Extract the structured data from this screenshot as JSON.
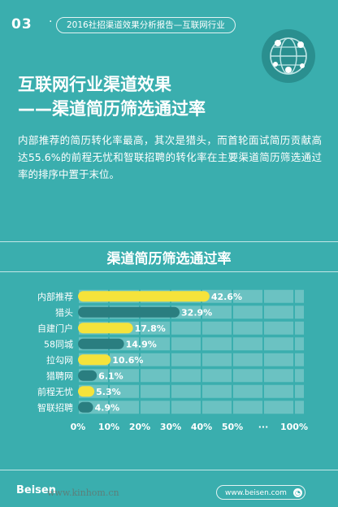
{
  "header": {
    "section_number": "03",
    "section_dot": "·",
    "section_title": "2016社招渠道效果分析报告—互联网行业"
  },
  "title": {
    "line1": "互联网行业渠道效果",
    "line2": "——渠道简历筛选通过率"
  },
  "body_text": "内部推荐的简历转化率最高，其次是猎头，而首轮面试简历贡献高达55.6%的前程无忧和智联招聘的转化率在主要渠道简历筛选通过率的排序中置于末位。",
  "footer": {
    "brand": "Beisen",
    "watermark": "www.kinhom.cn",
    "website": "www.beisen.com",
    "website_icon": "◔"
  },
  "colors": {
    "background": "#3aaeae",
    "highlight_bar": "#f5e33b",
    "normal_bar": "#2a7e80",
    "track": "#6bc2c2"
  },
  "chart_data": {
    "type": "bar",
    "orientation": "horizontal",
    "title": "渠道简历筛选通过率",
    "categories": [
      "内部推荐",
      "猎头",
      "自建门户",
      "58同城",
      "拉勾网",
      "猎聘网",
      "前程无忧",
      "智联招聘"
    ],
    "values": [
      42.6,
      32.9,
      17.8,
      14.9,
      10.6,
      6.1,
      5.3,
      4.9
    ],
    "value_labels": [
      "42.6%",
      "32.9%",
      "17.8%",
      "14.9%",
      "10.6%",
      "6.1%",
      "5.3%",
      "4.9%"
    ],
    "highlighted": [
      true,
      false,
      true,
      false,
      true,
      false,
      true,
      false
    ],
    "x_ticks": [
      "0%",
      "10%",
      "20%",
      "30%",
      "40%",
      "50%",
      "···",
      "100%"
    ],
    "xlim": [
      0,
      50
    ],
    "grid": true
  }
}
